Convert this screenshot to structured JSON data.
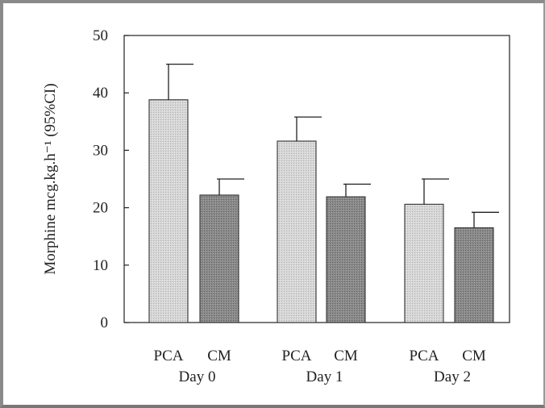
{
  "chart_data": {
    "type": "bar",
    "title": "",
    "xlabel": "",
    "ylabel": "Morphine mcg.kg.h⁻¹ (95%CI)",
    "ylim": [
      0,
      50
    ],
    "yticks": [
      0,
      10,
      20,
      30,
      40,
      50
    ],
    "groups": [
      "Day 0",
      "Day 1",
      "Day 2"
    ],
    "categories": [
      "PCA",
      "CM",
      "PCA",
      "CM",
      "PCA",
      "CM"
    ],
    "series_names": [
      "PCA",
      "CM"
    ],
    "values": [
      38.8,
      22.2,
      31.6,
      21.9,
      20.6,
      16.5
    ],
    "upper_ci": [
      45.0,
      25.0,
      35.8,
      24.1,
      25.0,
      19.2
    ],
    "colors": {
      "PCA": "#d9d9d9",
      "CM": "#8c8c8c"
    },
    "grid": false,
    "legend": "none"
  }
}
